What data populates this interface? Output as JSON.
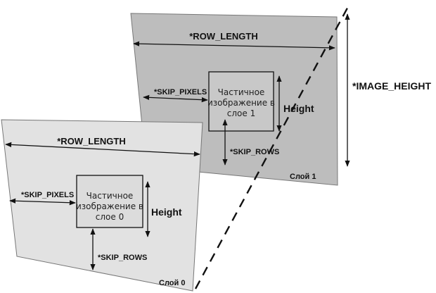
{
  "diagram": {
    "image_height_label": "*IMAGE_HEIGHT",
    "layer1": {
      "row_length_label": "*ROW_LENGTH",
      "skip_pixels_label": "*SKIP_PIXELS",
      "skip_rows_label": "*SKIP_ROWS",
      "height_label": "Height",
      "subimage_lines": [
        "Частичное",
        "изображение в",
        "слое 1"
      ],
      "layer_name": "Слой 1",
      "fill_color": "#bdbdbd"
    },
    "layer0": {
      "row_length_label": "*ROW_LENGTH",
      "skip_pixels_label": "*SKIP_PIXELS",
      "skip_rows_label": "*SKIP_ROWS",
      "height_label": "Height",
      "subimage_lines": [
        "Частичное",
        "изображение в",
        "слое 0"
      ],
      "layer_name": "Слой 0",
      "fill_color": "#e2e2e2"
    }
  }
}
